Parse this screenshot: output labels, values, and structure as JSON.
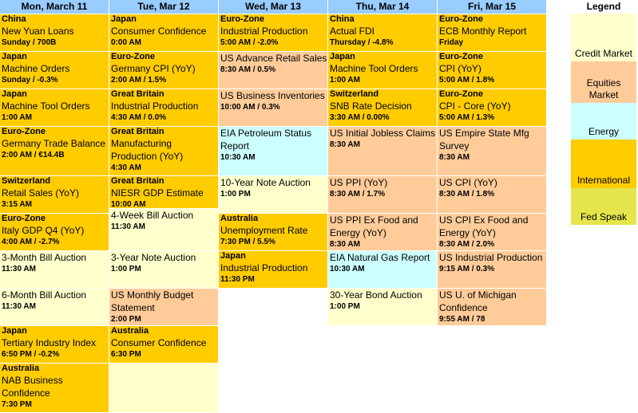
{
  "columns": [
    {
      "header": "Mon, March 11",
      "events": [
        {
          "country": "China",
          "event": "New Yuan Loans",
          "when": "Sunday / 700B",
          "category": "intl",
          "h": 46
        },
        {
          "country": "Japan",
          "event": "Machine Orders",
          "when": "Sunday / -0.3%",
          "category": "intl",
          "h": 46
        },
        {
          "country": "Japan",
          "event": "Machine Tool Orders",
          "when": "1:00 AM",
          "category": "intl",
          "h": 46
        },
        {
          "country": "Euro-Zone",
          "event": "Germany Trade Balance",
          "when": "2:00 AM / €14.4B",
          "category": "intl",
          "h": 61
        },
        {
          "country": "Switzerland",
          "event": "Retail Sales (YoY)",
          "when": "3:15 AM",
          "category": "intl",
          "h": 46
        },
        {
          "country": "Euro-Zone",
          "event": "Italy GDP Q4 (YoY)",
          "when": "4:00 AM / -2.7%",
          "category": "intl",
          "h": 46
        },
        {
          "country": "",
          "event": "3-Month Bill Auction",
          "when": "11:30 AM",
          "category": "credit",
          "h": 46
        },
        {
          "country": "",
          "event": "6-Month Bill Auction",
          "when": "11:30 AM",
          "category": "credit",
          "h": 46
        },
        {
          "country": "Japan",
          "event": "Tertiary Industry Index",
          "when": "6:50 PM / -0.2%",
          "category": "intl",
          "h": 46
        },
        {
          "country": "Australia",
          "event": "NAB Business Confidence",
          "when": "7:30 PM",
          "category": "intl",
          "h": 61
        }
      ]
    },
    {
      "header": "Tue, Mar 12",
      "events": [
        {
          "country": "Japan",
          "event": "Consumer Confidence",
          "when": "0:00 AM",
          "category": "intl",
          "h": 46
        },
        {
          "country": "Euro-Zone",
          "event": "Germany CPI (YoY)",
          "when": "2:00 AM / 1.5%",
          "category": "intl",
          "h": 46
        },
        {
          "country": "Great Britain",
          "event": "Industrial Production",
          "when": "4:30 AM / 0.0%",
          "category": "intl",
          "h": 46
        },
        {
          "country": "Great Britain",
          "event": "Manufacturing Production (YoY)",
          "when": "4:30 AM",
          "category": "intl",
          "h": 61
        },
        {
          "country": "Great Britain",
          "event": "NIESR GDP Estimate",
          "when": "10:00 AM",
          "category": "intl",
          "h": 40
        },
        {
          "country": "",
          "event": "4-Week Bill Auction",
          "when": "11:30 AM",
          "category": "credit",
          "h": 52
        },
        {
          "country": "",
          "event": "3-Year Note Auction",
          "when": "1:00 PM",
          "category": "credit",
          "h": 46
        },
        {
          "country": "",
          "event": "US Monthly Budget Statement",
          "when": "2:00 PM",
          "category": "equities",
          "h": 46
        },
        {
          "country": "Australia",
          "event": "Consumer Confidence",
          "when": "6:30 PM",
          "category": "intl",
          "h": 46
        },
        {
          "country": "",
          "event": "",
          "when": "",
          "category": "credit",
          "h": 61
        }
      ]
    },
    {
      "header": "Wed, Mar 13",
      "events": [
        {
          "country": "Euro-Zone",
          "event": "Industrial Production",
          "when": "5:00 AM / -2.0%",
          "category": "intl",
          "h": 46
        },
        {
          "country": "",
          "event": "US Advance Retail Sales",
          "when": "8:30 AM / 0.5%",
          "category": "equities",
          "h": 46
        },
        {
          "country": "",
          "event": "US Business Inventories",
          "when": "10:00 AM / 0.3%",
          "category": "equities",
          "h": 46
        },
        {
          "country": "",
          "event": "EIA Petroleum Status Report",
          "when": "10:30 AM",
          "category": "energy",
          "h": 61
        },
        {
          "country": "",
          "event": "10-Year Note Auction",
          "when": "1:00 PM",
          "category": "credit",
          "h": 46
        },
        {
          "country": "Australia",
          "event": "Unemployment Rate",
          "when": "7:30 PM / 5.5%",
          "category": "intl",
          "h": 46
        },
        {
          "country": "Japan",
          "event": "Industrial Production",
          "when": "11:30 PM",
          "category": "intl",
          "h": 46
        }
      ]
    },
    {
      "header": "Thu, Mar 14",
      "events": [
        {
          "country": "China",
          "event": "Actual FDI",
          "when": "Thursday / -4.8%",
          "category": "intl",
          "h": 46
        },
        {
          "country": "Japan",
          "event": "Machine Tool Orders",
          "when": "1:00 AM",
          "category": "intl",
          "h": 46
        },
        {
          "country": "Switzerland",
          "event": "SNB Rate Decision",
          "when": "3:30 AM / 0.00%",
          "category": "intl",
          "h": 46
        },
        {
          "country": "",
          "event": "US Initial Jobless Claims",
          "when": "8:30 AM",
          "category": "equities",
          "h": 61
        },
        {
          "country": "",
          "event": "US PPI (YoY)",
          "when": "8:30 AM / 1.7%",
          "category": "equities",
          "h": 46
        },
        {
          "country": "",
          "event": "US PPI Ex Food and Energy (YoY)",
          "when": "8:30 AM",
          "category": "equities",
          "h": 46
        },
        {
          "country": "",
          "event": "EIA Natural Gas Report",
          "when": "10:30 AM",
          "category": "energy",
          "h": 46
        },
        {
          "country": "",
          "event": "30-Year Bond Auction",
          "when": "1:00 PM",
          "category": "credit",
          "h": 46
        }
      ]
    },
    {
      "header": "Fri, Mar 15",
      "events": [
        {
          "country": "Euro-Zone",
          "event": "ECB Monthly Report",
          "when": "Friday",
          "category": "intl",
          "h": 46
        },
        {
          "country": "Euro-Zone",
          "event": "CPI (YoY)",
          "when": "5:00 AM / 1.8%",
          "category": "intl",
          "h": 46
        },
        {
          "country": "Euro-Zone",
          "event": "CPI - Core (YoY)",
          "when": "5:00 AM / 1.3%",
          "category": "intl",
          "h": 46
        },
        {
          "country": "",
          "event": "US Empire State Mfg Survey",
          "when": "8:30 AM",
          "category": "equities",
          "h": 61
        },
        {
          "country": "",
          "event": "US CPI (YoY)",
          "when": "8:30 AM / 1.8%",
          "category": "equities",
          "h": 46
        },
        {
          "country": "",
          "event": "US CPI Ex Food and Energy (YoY)",
          "when": "8:30 AM / 2.0%",
          "category": "equities",
          "h": 46
        },
        {
          "country": "",
          "event": "US Industrial Production",
          "when": "9:15 AM / 0.3%",
          "category": "equities",
          "h": 46
        },
        {
          "country": "",
          "event": "US U. of Michigan Confidence",
          "when": "9:55 AM / 78",
          "category": "equities",
          "h": 46
        }
      ]
    }
  ],
  "legend": {
    "title": "Legend",
    "items": [
      {
        "label": "Credit Market",
        "category": "credit",
        "h": 60
      },
      {
        "label": "Equities Market",
        "category": "equities",
        "h": 52
      },
      {
        "label": "Energy",
        "category": "energy",
        "h": 46
      },
      {
        "label": "International",
        "category": "intl",
        "h": 61
      },
      {
        "label": "Fed Speak",
        "category": "fed",
        "h": 46
      }
    ]
  },
  "colors": {
    "header": "#99ccff",
    "intl": "#ffcc00",
    "equities": "#ffcc99",
    "credit": "#ffffcc",
    "energy": "#ccffff",
    "fed": "#e6e64c"
  }
}
